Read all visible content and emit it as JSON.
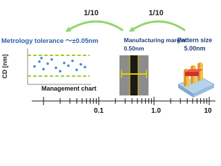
{
  "arrows": [
    {
      "label": "1/10"
    },
    {
      "label": "1/10"
    }
  ],
  "metrology": {
    "label": "Metrology tolerance ～±0.05nm"
  },
  "manufacturing": {
    "label": "Manufacturing margin",
    "value": "0.50nm"
  },
  "pattern": {
    "label": "Pattern size",
    "value": "5.00nm"
  },
  "chart": {
    "y_label": "CD [nm]",
    "caption": "Management chart"
  },
  "axis": {
    "labels": [
      "0.1",
      "1.0",
      "10"
    ]
  }
}
